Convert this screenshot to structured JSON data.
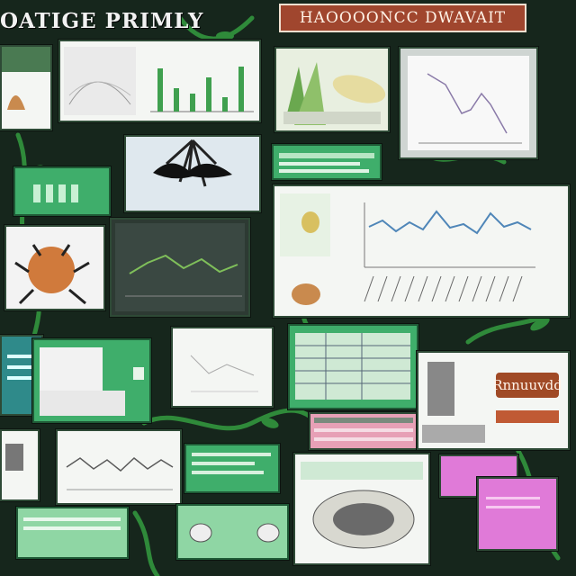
{
  "header": {
    "left_title": "OATIGE PRIMLY",
    "banner_title": "HAOOOONCC DWAVAIT"
  },
  "callout": {
    "label": "Rnnuuvdd"
  },
  "colors": {
    "board": "#16261c",
    "vine": "#2f8a3a",
    "panel_green": "#3fae6b",
    "banner": "#a0462e",
    "callout_pink": "#e07ad8"
  },
  "icons": [
    "insect-icon",
    "root-icon",
    "corn-icon",
    "seed-icon"
  ]
}
